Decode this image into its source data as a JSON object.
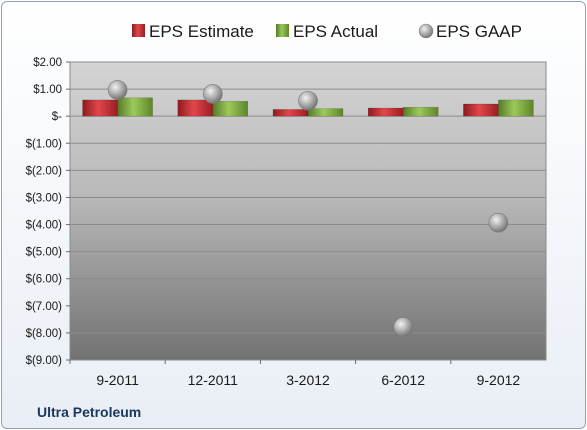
{
  "company": "Ultra Petroleum",
  "chart_data": {
    "type": "bar",
    "categories": [
      "9-2011",
      "12-2011",
      "3-2012",
      "6-2012",
      "9-2012"
    ],
    "series": [
      {
        "name": "EPS Estimate",
        "kind": "bar",
        "color": "#c0282d",
        "values": [
          0.6,
          0.6,
          0.25,
          0.3,
          0.45
        ]
      },
      {
        "name": "EPS Actual",
        "kind": "bar",
        "color": "#77a63a",
        "values": [
          0.68,
          0.55,
          0.28,
          0.33,
          0.6
        ]
      },
      {
        "name": "EPS GAAP",
        "kind": "marker",
        "color": "#a6a6a6",
        "values": [
          0.97,
          0.82,
          0.57,
          -7.78,
          -3.93
        ]
      }
    ],
    "y_ticks": [
      "$2.00",
      "$1.00",
      "$-",
      "$(1.00)",
      "$(2.00)",
      "$(3.00)",
      "$(4.00)",
      "$(5.00)",
      "$(6.00)",
      "$(7.00)",
      "$(8.00)",
      "$(9.00)"
    ],
    "ylim": [
      -9,
      2
    ],
    "grid": true,
    "legend_position": "top"
  }
}
